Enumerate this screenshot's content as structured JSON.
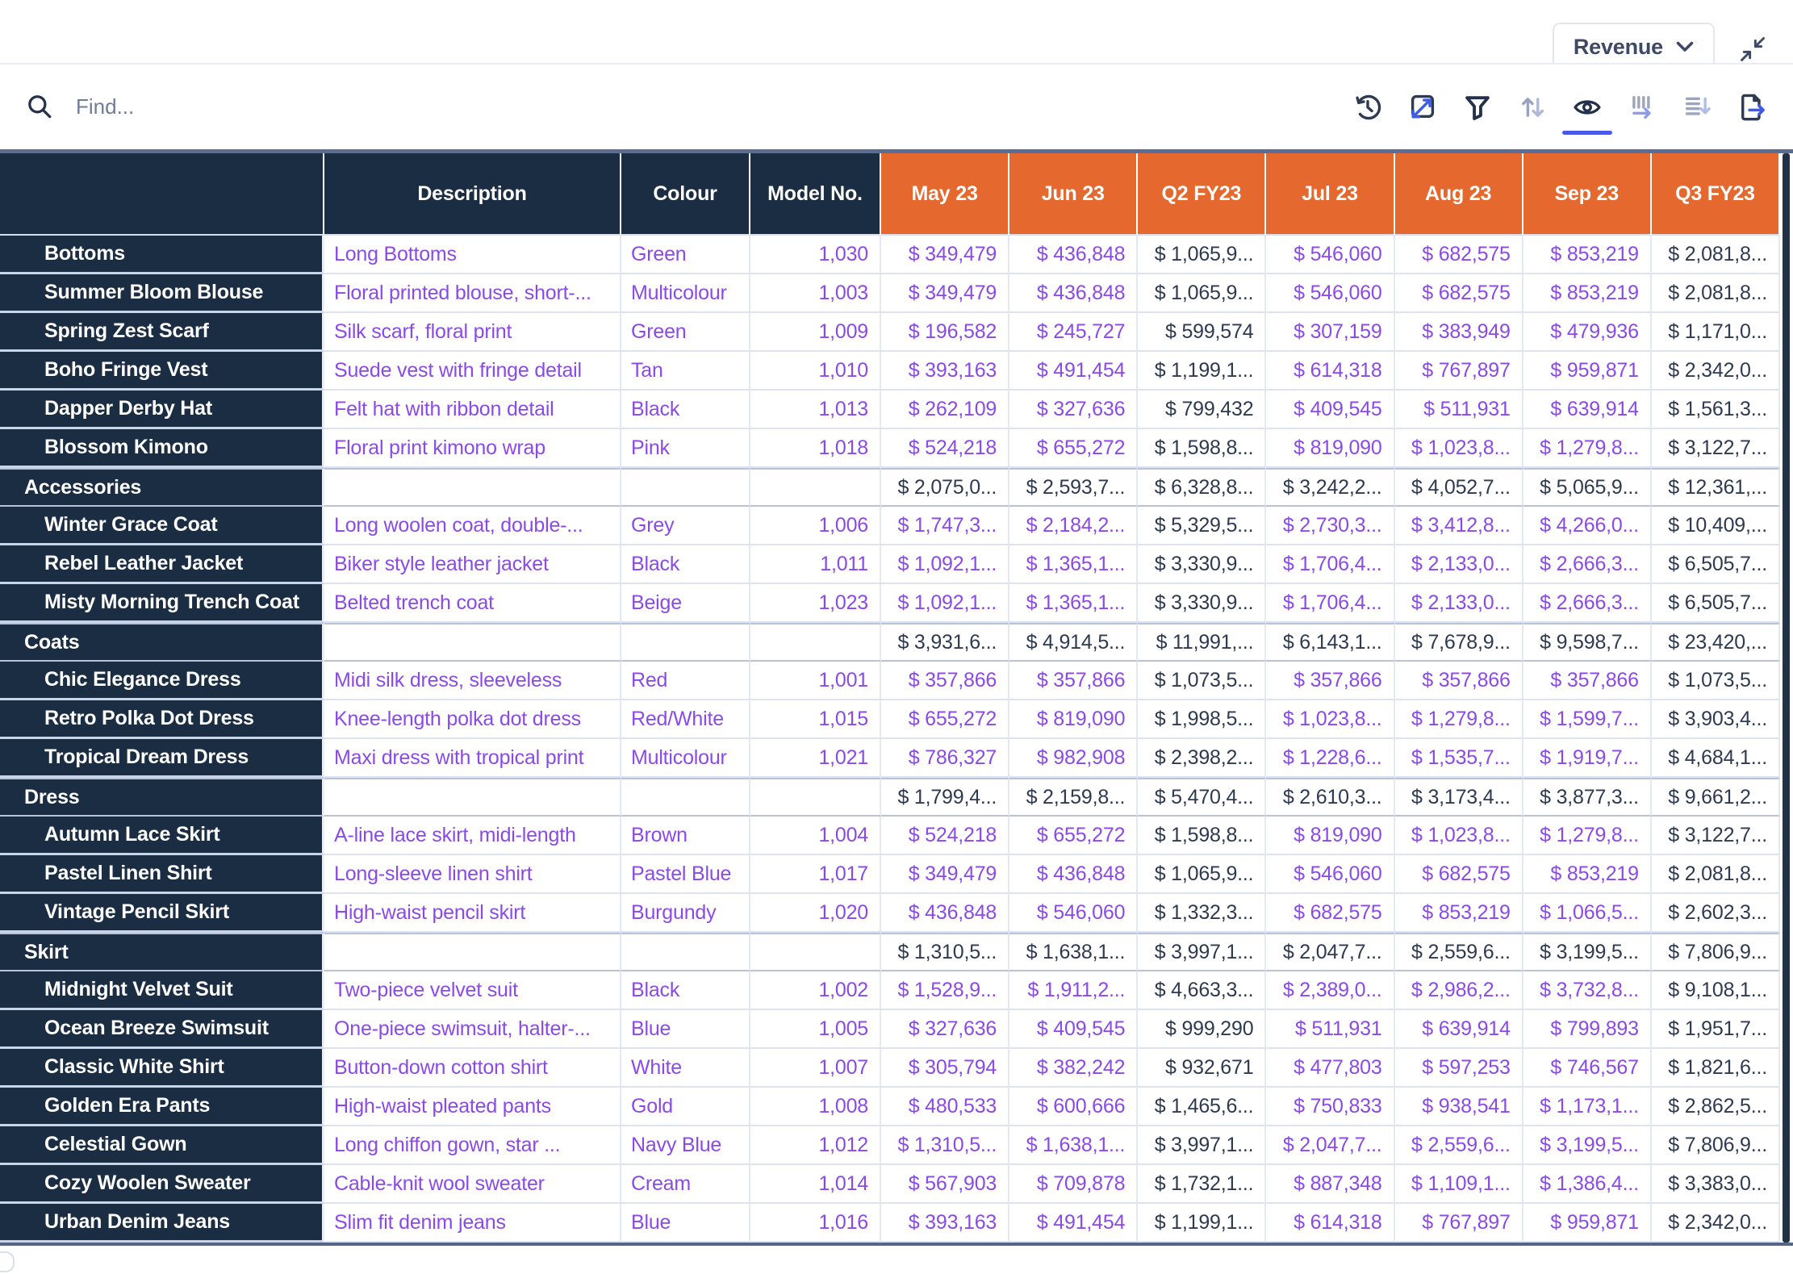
{
  "topbar": {
    "measure_label": "Revenue",
    "measure_dropdown_icon": "chevron-down-icon",
    "collapse_icon": "collapse-arrows-icon"
  },
  "toolbar": {
    "find_placeholder": "Find...",
    "search_icon": "search-icon",
    "icons": [
      "history-icon",
      "transpose-icon",
      "filter-icon",
      "sort-arrows-icon",
      "visibility-icon",
      "columns-icon",
      "sort-order-icon",
      "export-icon"
    ],
    "active_icon": "visibility-icon"
  },
  "colors": {
    "header_navy": "#1B2D43",
    "period_orange": "#E5692F",
    "link_purple": "#8B4AE8",
    "value_dark": "#2E3A52",
    "active_blue": "#4A5AE8",
    "grid_border_slate": "#5B6D92"
  },
  "table": {
    "left_columns": [
      "Description",
      "Colour",
      "Model No."
    ],
    "period_columns": [
      "May 23",
      "Jun 23",
      "Q2 FY23",
      "Jul 23",
      "Aug 23",
      "Sep 23",
      "Q3 FY23"
    ],
    "quarter_column_indexes": [
      2,
      6
    ],
    "rows": [
      {
        "name": "Bottoms",
        "type": "item",
        "description": "Long Bottoms",
        "colour": "Green",
        "model": "1,030",
        "values": [
          "$ 349,479",
          "$ 436,848",
          "$ 1,065,9...",
          "$ 546,060",
          "$ 682,575",
          "$ 853,219",
          "$ 2,081,8..."
        ]
      },
      {
        "name": "Summer Bloom Blouse",
        "type": "item",
        "description": "Floral printed blouse, short-...",
        "colour": "Multicolour",
        "model": "1,003",
        "values": [
          "$ 349,479",
          "$ 436,848",
          "$ 1,065,9...",
          "$ 546,060",
          "$ 682,575",
          "$ 853,219",
          "$ 2,081,8..."
        ]
      },
      {
        "name": "Spring Zest Scarf",
        "type": "item",
        "description": "Silk scarf, floral print",
        "colour": "Green",
        "model": "1,009",
        "values": [
          "$ 196,582",
          "$ 245,727",
          "$ 599,574",
          "$ 307,159",
          "$ 383,949",
          "$ 479,936",
          "$ 1,171,0..."
        ]
      },
      {
        "name": "Boho Fringe Vest",
        "type": "item",
        "description": "Suede vest with fringe detail",
        "colour": "Tan",
        "model": "1,010",
        "values": [
          "$ 393,163",
          "$ 491,454",
          "$ 1,199,1...",
          "$ 614,318",
          "$ 767,897",
          "$ 959,871",
          "$ 2,342,0..."
        ]
      },
      {
        "name": "Dapper Derby Hat",
        "type": "item",
        "description": "Felt hat with ribbon detail",
        "colour": "Black",
        "model": "1,013",
        "values": [
          "$ 262,109",
          "$ 327,636",
          "$ 799,432",
          "$ 409,545",
          "$ 511,931",
          "$ 639,914",
          "$ 1,561,3..."
        ]
      },
      {
        "name": "Blossom Kimono",
        "type": "item",
        "description": "Floral print kimono wrap",
        "colour": "Pink",
        "model": "1,018",
        "values": [
          "$ 524,218",
          "$ 655,272",
          "$ 1,598,8...",
          "$ 819,090",
          "$ 1,023,8...",
          "$ 1,279,8...",
          "$ 3,122,7..."
        ]
      },
      {
        "name": "Accessories",
        "type": "group",
        "description": "",
        "colour": "",
        "model": "",
        "values": [
          "$ 2,075,0...",
          "$ 2,593,7...",
          "$ 6,328,8...",
          "$ 3,242,2...",
          "$ 4,052,7...",
          "$ 5,065,9...",
          "$ 12,361,..."
        ]
      },
      {
        "name": "Winter Grace Coat",
        "type": "item",
        "description": "Long woolen coat, double-...",
        "colour": "Grey",
        "model": "1,006",
        "values": [
          "$ 1,747,3...",
          "$ 2,184,2...",
          "$ 5,329,5...",
          "$ 2,730,3...",
          "$ 3,412,8...",
          "$ 4,266,0...",
          "$ 10,409,..."
        ]
      },
      {
        "name": "Rebel Leather Jacket",
        "type": "item",
        "description": "Biker style leather jacket",
        "colour": "Black",
        "model": "1,011",
        "values": [
          "$ 1,092,1...",
          "$ 1,365,1...",
          "$ 3,330,9...",
          "$ 1,706,4...",
          "$ 2,133,0...",
          "$ 2,666,3...",
          "$ 6,505,7..."
        ]
      },
      {
        "name": "Misty Morning Trench Coat",
        "type": "item",
        "description": "Belted trench coat",
        "colour": "Beige",
        "model": "1,023",
        "values": [
          "$ 1,092,1...",
          "$ 1,365,1...",
          "$ 3,330,9...",
          "$ 1,706,4...",
          "$ 2,133,0...",
          "$ 2,666,3...",
          "$ 6,505,7..."
        ]
      },
      {
        "name": "Coats",
        "type": "group",
        "description": "",
        "colour": "",
        "model": "",
        "values": [
          "$ 3,931,6...",
          "$ 4,914,5...",
          "$ 11,991,...",
          "$ 6,143,1...",
          "$ 7,678,9...",
          "$ 9,598,7...",
          "$ 23,420,..."
        ]
      },
      {
        "name": "Chic Elegance Dress",
        "type": "item",
        "description": "Midi silk dress, sleeveless",
        "colour": "Red",
        "model": "1,001",
        "values": [
          "$ 357,866",
          "$ 357,866",
          "$ 1,073,5...",
          "$ 357,866",
          "$ 357,866",
          "$ 357,866",
          "$ 1,073,5..."
        ]
      },
      {
        "name": "Retro Polka Dot Dress",
        "type": "item",
        "description": "Knee-length polka dot dress",
        "colour": "Red/White",
        "model": "1,015",
        "values": [
          "$ 655,272",
          "$ 819,090",
          "$ 1,998,5...",
          "$ 1,023,8...",
          "$ 1,279,8...",
          "$ 1,599,7...",
          "$ 3,903,4..."
        ]
      },
      {
        "name": "Tropical Dream Dress",
        "type": "item",
        "description": "Maxi dress with tropical print",
        "colour": "Multicolour",
        "model": "1,021",
        "values": [
          "$ 786,327",
          "$ 982,908",
          "$ 2,398,2...",
          "$ 1,228,6...",
          "$ 1,535,7...",
          "$ 1,919,7...",
          "$ 4,684,1..."
        ]
      },
      {
        "name": "Dress",
        "type": "group",
        "description": "",
        "colour": "",
        "model": "",
        "values": [
          "$ 1,799,4...",
          "$ 2,159,8...",
          "$ 5,470,4...",
          "$ 2,610,3...",
          "$ 3,173,4...",
          "$ 3,877,3...",
          "$ 9,661,2..."
        ]
      },
      {
        "name": "Autumn Lace Skirt",
        "type": "item",
        "description": "A-line lace skirt, midi-length",
        "colour": "Brown",
        "model": "1,004",
        "values": [
          "$ 524,218",
          "$ 655,272",
          "$ 1,598,8...",
          "$ 819,090",
          "$ 1,023,8...",
          "$ 1,279,8...",
          "$ 3,122,7..."
        ]
      },
      {
        "name": "Pastel Linen Shirt",
        "type": "item",
        "description": "Long-sleeve linen shirt",
        "colour": "Pastel Blue",
        "model": "1,017",
        "values": [
          "$ 349,479",
          "$ 436,848",
          "$ 1,065,9...",
          "$ 546,060",
          "$ 682,575",
          "$ 853,219",
          "$ 2,081,8..."
        ]
      },
      {
        "name": "Vintage Pencil Skirt",
        "type": "item",
        "description": "High-waist pencil skirt",
        "colour": "Burgundy",
        "model": "1,020",
        "values": [
          "$ 436,848",
          "$ 546,060",
          "$ 1,332,3...",
          "$ 682,575",
          "$ 853,219",
          "$ 1,066,5...",
          "$ 2,602,3..."
        ]
      },
      {
        "name": "Skirt",
        "type": "group",
        "description": "",
        "colour": "",
        "model": "",
        "values": [
          "$ 1,310,5...",
          "$ 1,638,1...",
          "$ 3,997,1...",
          "$ 2,047,7...",
          "$ 2,559,6...",
          "$ 3,199,5...",
          "$ 7,806,9..."
        ]
      },
      {
        "name": "Midnight Velvet Suit",
        "type": "item",
        "description": "Two-piece velvet suit",
        "colour": "Black",
        "model": "1,002",
        "values": [
          "$ 1,528,9...",
          "$ 1,911,2...",
          "$ 4,663,3...",
          "$ 2,389,0...",
          "$ 2,986,2...",
          "$ 3,732,8...",
          "$ 9,108,1..."
        ]
      },
      {
        "name": "Ocean Breeze Swimsuit",
        "type": "item",
        "description": "One-piece swimsuit, halter-...",
        "colour": "Blue",
        "model": "1,005",
        "values": [
          "$ 327,636",
          "$ 409,545",
          "$ 999,290",
          "$ 511,931",
          "$ 639,914",
          "$ 799,893",
          "$ 1,951,7..."
        ]
      },
      {
        "name": "Classic White Shirt",
        "type": "item",
        "description": "Button-down cotton shirt",
        "colour": "White",
        "model": "1,007",
        "values": [
          "$ 305,794",
          "$ 382,242",
          "$ 932,671",
          "$ 477,803",
          "$ 597,253",
          "$ 746,567",
          "$ 1,821,6..."
        ]
      },
      {
        "name": "Golden Era Pants",
        "type": "item",
        "description": "High-waist pleated pants",
        "colour": "Gold",
        "model": "1,008",
        "values": [
          "$ 480,533",
          "$ 600,666",
          "$ 1,465,6...",
          "$ 750,833",
          "$ 938,541",
          "$ 1,173,1...",
          "$ 2,862,5..."
        ]
      },
      {
        "name": "Celestial Gown",
        "type": "item",
        "description": "Long chiffon gown, star ...",
        "colour": "Navy Blue",
        "model": "1,012",
        "values": [
          "$ 1,310,5...",
          "$ 1,638,1...",
          "$ 3,997,1...",
          "$ 2,047,7...",
          "$ 2,559,6...",
          "$ 3,199,5...",
          "$ 7,806,9..."
        ]
      },
      {
        "name": "Cozy Woolen Sweater",
        "type": "item",
        "description": "Cable-knit wool sweater",
        "colour": "Cream",
        "model": "1,014",
        "values": [
          "$ 567,903",
          "$ 709,878",
          "$ 1,732,1...",
          "$ 887,348",
          "$ 1,109,1...",
          "$ 1,386,4...",
          "$ 3,383,0..."
        ]
      },
      {
        "name": "Urban Denim Jeans",
        "type": "item",
        "description": "Slim fit denim jeans",
        "colour": "Blue",
        "model": "1,016",
        "values": [
          "$ 393,163",
          "$ 491,454",
          "$ 1,199,1...",
          "$ 614,318",
          "$ 767,897",
          "$ 959,871",
          "$ 2,342,0..."
        ]
      }
    ]
  }
}
